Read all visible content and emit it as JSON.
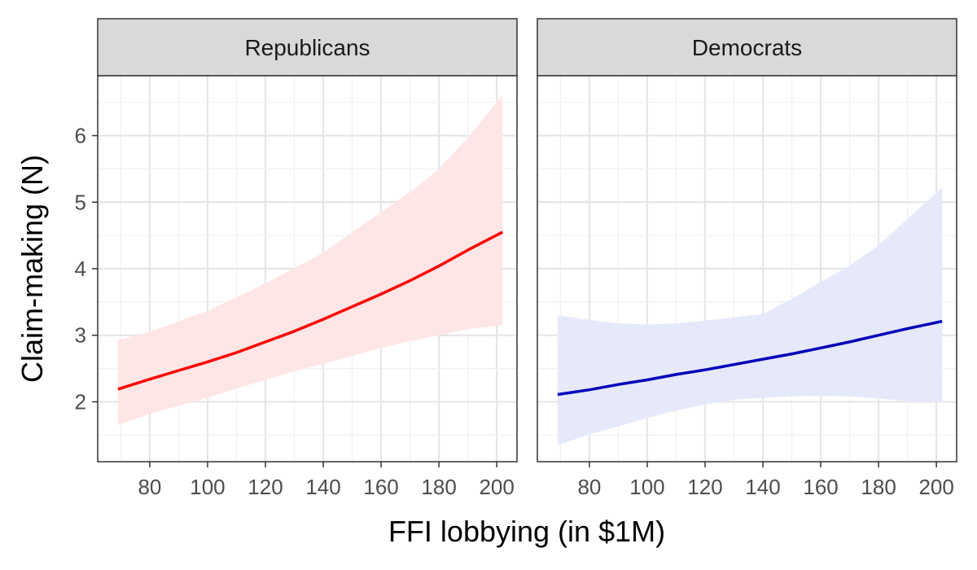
{
  "chart_data": {
    "type": "line",
    "xlabel": "FFI lobbying (in $1M)",
    "ylabel": "Claim-making (N)",
    "xlim": [
      62,
      207
    ],
    "ylim": [
      1.1,
      6.9
    ],
    "x_ticks": [
      80,
      100,
      120,
      140,
      160,
      180,
      200
    ],
    "y_ticks": [
      2,
      3,
      4,
      5,
      6
    ],
    "grid": true,
    "legend": "none",
    "panels": [
      {
        "name": "Republicans",
        "color": "#ff0000",
        "band_color": "#ffe6e6",
        "x": [
          69,
          80,
          90,
          100,
          110,
          120,
          130,
          140,
          150,
          160,
          170,
          180,
          190,
          202
        ],
        "y": [
          2.19,
          2.34,
          2.47,
          2.6,
          2.74,
          2.9,
          3.06,
          3.24,
          3.43,
          3.62,
          3.82,
          4.04,
          4.28,
          4.55
        ],
        "lower": [
          1.65,
          1.82,
          1.94,
          2.06,
          2.2,
          2.33,
          2.46,
          2.57,
          2.69,
          2.81,
          2.91,
          3.0,
          3.09,
          3.15
        ],
        "upper": [
          2.93,
          3.05,
          3.21,
          3.37,
          3.57,
          3.78,
          4.01,
          4.24,
          4.55,
          4.85,
          5.15,
          5.5,
          5.97,
          6.6
        ]
      },
      {
        "name": "Democrats",
        "color": "#0000bb",
        "band_color": "#e6e9fa",
        "x": [
          69,
          80,
          90,
          100,
          110,
          120,
          130,
          140,
          150,
          160,
          170,
          180,
          190,
          202
        ],
        "y": [
          2.11,
          2.18,
          2.26,
          2.33,
          2.41,
          2.48,
          2.56,
          2.64,
          2.72,
          2.81,
          2.9,
          3.0,
          3.1,
          3.21
        ],
        "lower": [
          1.35,
          1.51,
          1.63,
          1.76,
          1.87,
          1.96,
          2.03,
          2.06,
          2.08,
          2.09,
          2.08,
          2.05,
          2.01,
          1.99
        ],
        "upper": [
          3.3,
          3.23,
          3.18,
          3.16,
          3.18,
          3.22,
          3.27,
          3.32,
          3.55,
          3.8,
          4.05,
          4.35,
          4.75,
          5.22
        ]
      }
    ]
  }
}
